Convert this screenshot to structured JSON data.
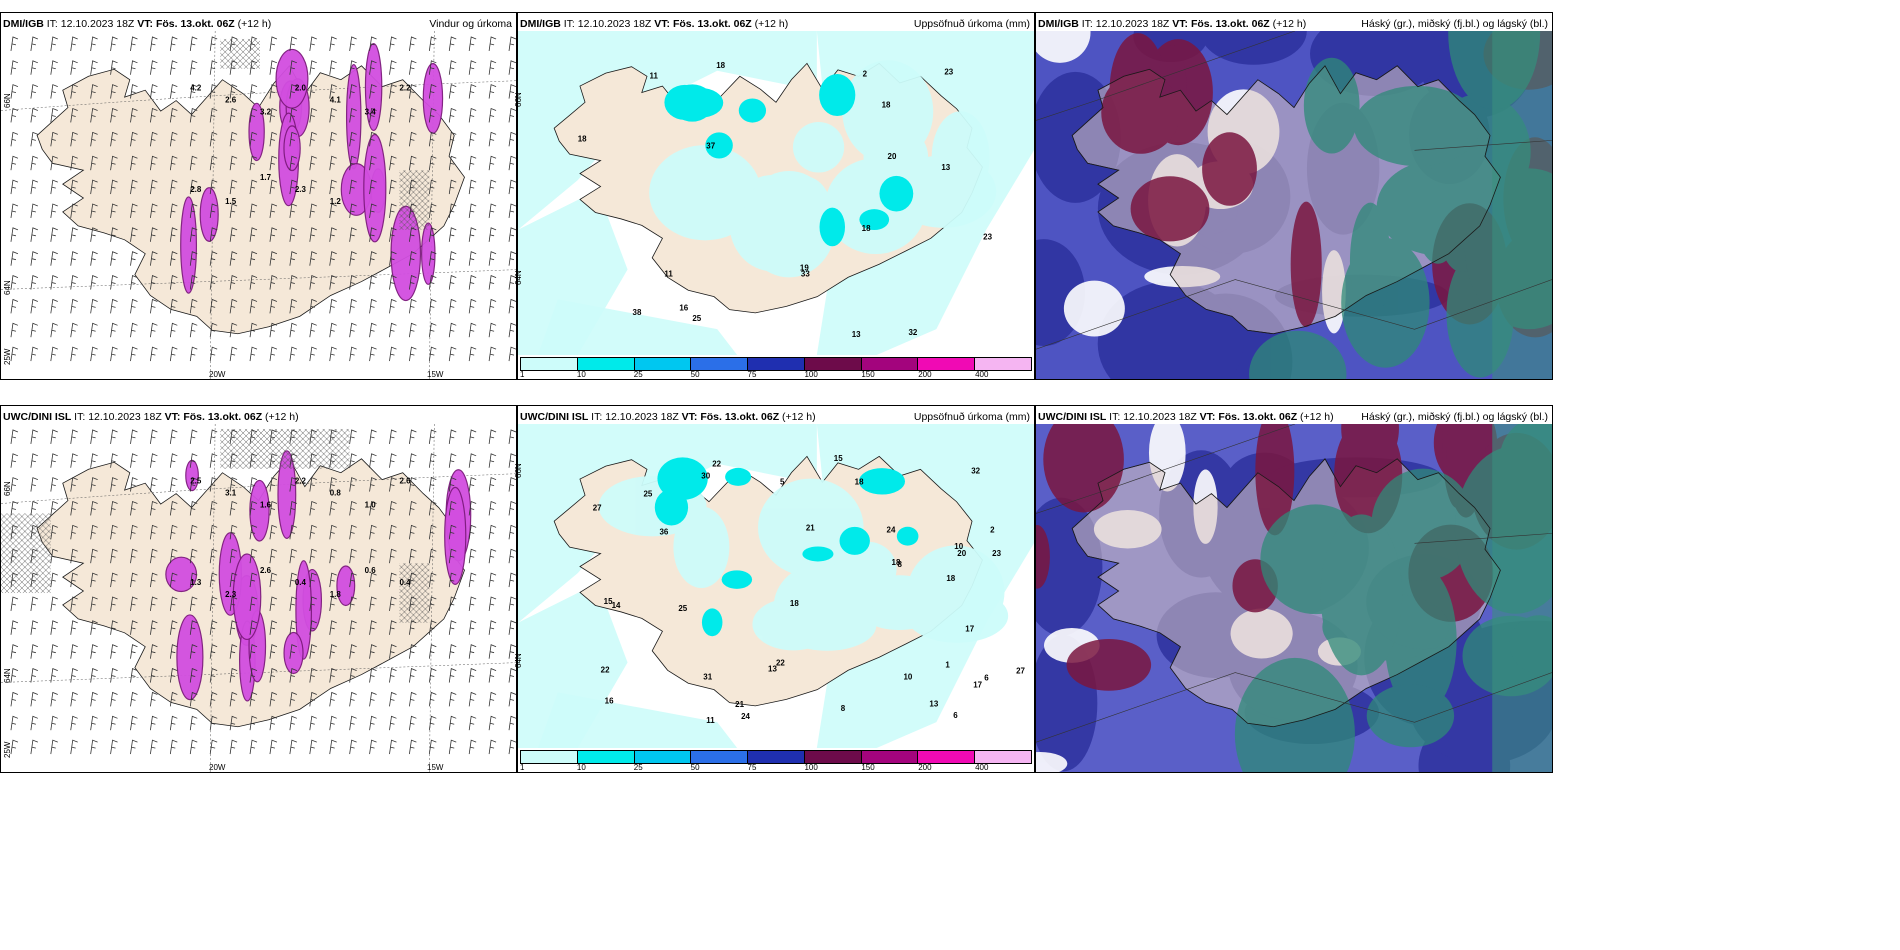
{
  "rows": [
    {
      "model": "DMI/IGB",
      "it_label": "IT:",
      "it_value": "12.10.2023 18Z",
      "vt_label": "VT:",
      "vt_value": "Fös. 13.okt. 06Z",
      "lead": "(+12 h)"
    },
    {
      "model": "UWC/DINI ISL",
      "it_label": "IT:",
      "it_value": "12.10.2023 18Z",
      "vt_label": "VT:",
      "vt_value": "Fös. 13.okt. 06Z",
      "lead": "(+12 h)"
    }
  ],
  "panel_titles": {
    "wind": "Vindur og úrkoma",
    "precip": "Uppsöfnuð úrkoma (mm)",
    "cloud": "Háský (gr.), miðský (fj.bl.) og lágský (bl.)"
  },
  "axis_labels": {
    "lat66": "66N",
    "lat64": "64N",
    "lon25": "25W",
    "lon20": "20W",
    "lon15": "15W"
  },
  "legend": {
    "ticks": [
      "1",
      "10",
      "25",
      "50",
      "75",
      "100",
      "150",
      "200",
      "400"
    ],
    "colors": [
      "#cdfcfa",
      "#00eaea",
      "#00c7f0",
      "#2b6fe8",
      "#1f2fb0",
      "#6d0b4a",
      "#a3047d",
      "#f00ab4",
      "#f5b5f2"
    ]
  },
  "colors": {
    "land": "#f5e8d8",
    "coast": "#1a1a1a",
    "precip_light": "#cdfcfa",
    "precip_mid": "#00eaea",
    "wind_precip": "#d24ee0",
    "wind_precip_dark": "#7d1a7d",
    "cloud_high": "#2b2f9c",
    "cloud_mid": "#7a1640",
    "cloud_low": "#2f8a78"
  },
  "precip_values": {
    "top": [
      "23",
      "32",
      "33",
      "38",
      "19",
      "37",
      "18",
      "18",
      "13",
      "13",
      "18",
      "23",
      "18",
      "20",
      "25",
      "11",
      "11",
      "16",
      "2"
    ],
    "bottom": [
      "1",
      "2",
      "6",
      "21",
      "16",
      "22",
      "10",
      "31",
      "32",
      "36",
      "23",
      "27",
      "18",
      "24",
      "22",
      "25",
      "17",
      "30",
      "22",
      "20",
      "15",
      "14",
      "8",
      "18",
      "21",
      "13",
      "15",
      "18",
      "24",
      "27",
      "25",
      "10",
      "11",
      "18",
      "17",
      "13",
      "8",
      "5",
      "6"
    ]
  },
  "wind_values": {
    "top": [
      "4.2",
      "2.6",
      "3.2",
      "2.0",
      "4.1",
      "3.4",
      "2.2",
      "2.8",
      "1.5",
      "1.7",
      "2.3",
      "1.2"
    ],
    "bottom": [
      "2.5",
      "3.1",
      "1.6",
      "2.2",
      "0.8",
      "1.0",
      "2.6",
      "1.3",
      "2.3",
      "2.6",
      "0.4",
      "1.8",
      "0.6",
      "0.4"
    ]
  }
}
